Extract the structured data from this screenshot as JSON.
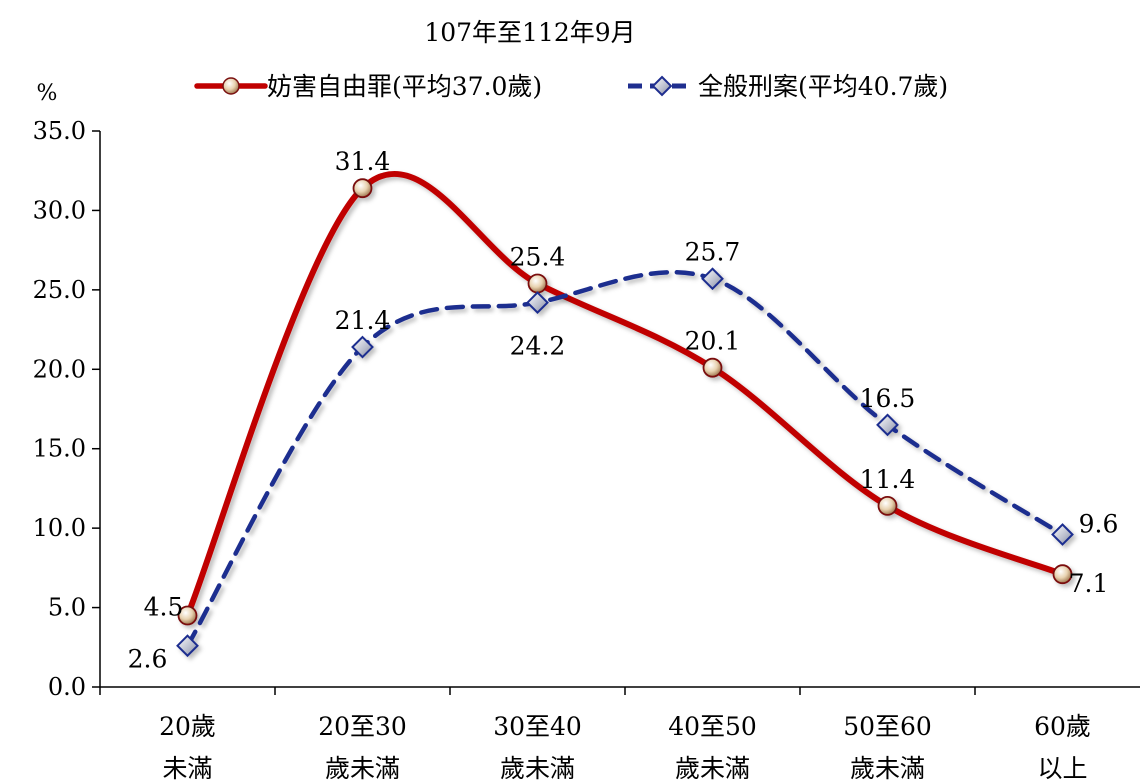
{
  "chart_data": {
    "type": "line",
    "title": "107年至112年9月",
    "ylabel": "%",
    "xlabel": "",
    "ylim": [
      0,
      35
    ],
    "yticks": [
      "0.0",
      "5.0",
      "10.0",
      "15.0",
      "20.0",
      "25.0",
      "30.0",
      "35.0"
    ],
    "ytick_values": [
      0,
      5,
      10,
      15,
      20,
      25,
      30,
      35
    ],
    "categories": [
      [
        "20歲",
        "未滿"
      ],
      [
        "20至30",
        "歲未滿"
      ],
      [
        "30至40",
        "歲未滿"
      ],
      [
        "40至50",
        "歲未滿"
      ],
      [
        "50至60",
        "歲未滿"
      ],
      [
        "60歲",
        "以上"
      ]
    ],
    "grid": false,
    "legend_position": "top-center",
    "series": [
      {
        "name": "妨害自由罪(平均37.0歲)",
        "values": [
          4.5,
          31.4,
          25.4,
          20.1,
          11.4,
          7.1
        ],
        "labels": [
          "4.5",
          "31.4",
          "25.4",
          "20.1",
          "11.4",
          "7.1"
        ],
        "color": "#c00000",
        "marker": "circle",
        "line_style": "solid"
      },
      {
        "name": "全般刑案(平均40.7歲)",
        "values": [
          2.6,
          21.4,
          24.2,
          25.7,
          16.5,
          9.6
        ],
        "labels": [
          "2.6",
          "21.4",
          "24.2",
          "25.7",
          "16.5",
          "9.6"
        ],
        "color": "#1f2e8f",
        "marker": "diamond",
        "line_style": "dashed"
      }
    ]
  }
}
